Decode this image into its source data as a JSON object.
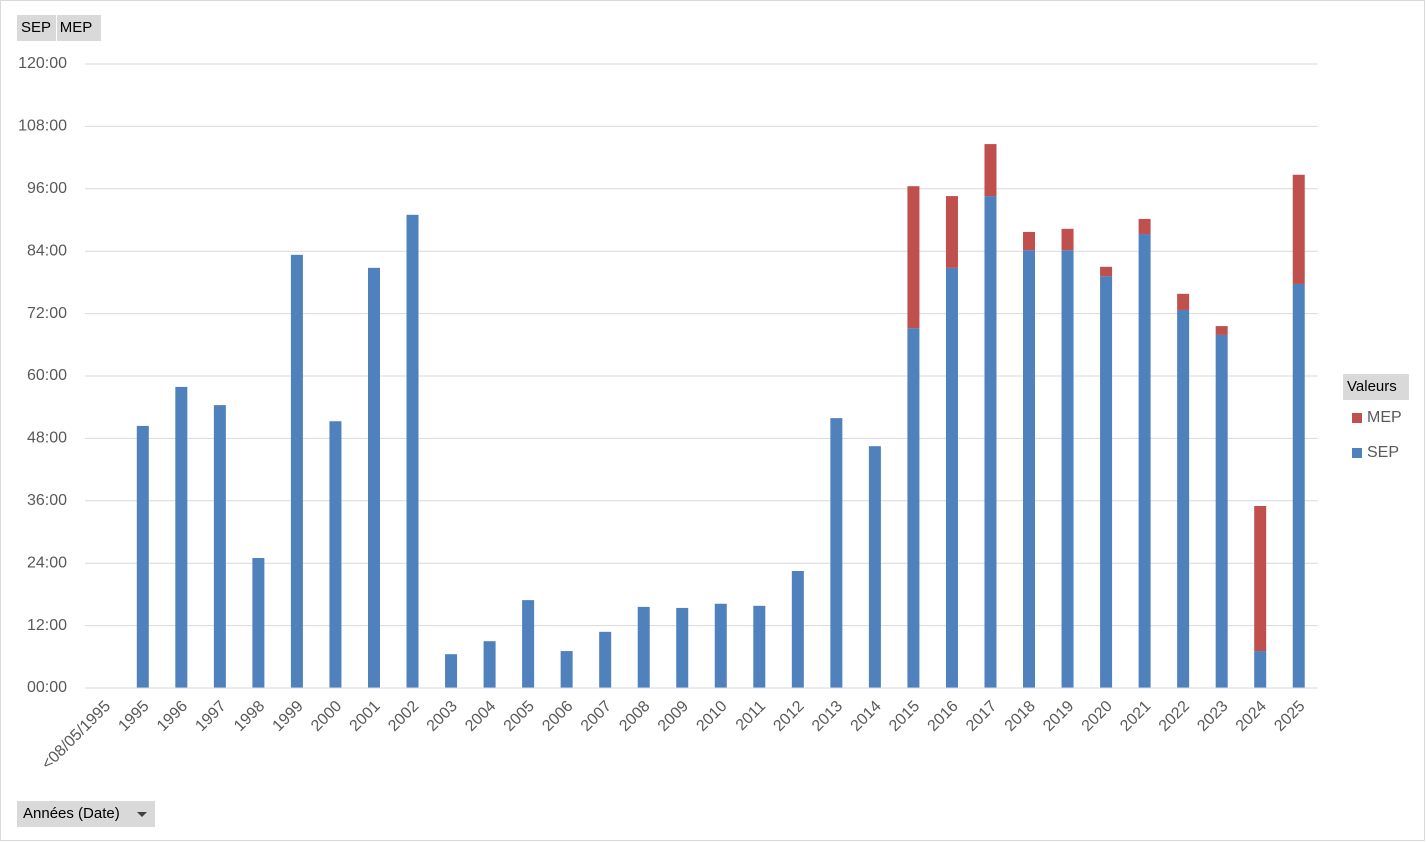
{
  "chart_data": {
    "type": "stacked_bar",
    "field_buttons": [
      "SEP",
      "MEP"
    ],
    "axis_field": "Années (Date)",
    "legend_title": "Valeurs",
    "categories": [
      "<08/05/1995",
      "1995",
      "1996",
      "1997",
      "1998",
      "1999",
      "2000",
      "2001",
      "2002",
      "2003",
      "2004",
      "2005",
      "2006",
      "2007",
      "2008",
      "2009",
      "2010",
      "2011",
      "2012",
      "2013",
      "2014",
      "2015",
      "2016",
      "2017",
      "2018",
      "2019",
      "2020",
      "2021",
      "2022",
      "2023",
      "2024",
      "2025"
    ],
    "series": [
      {
        "name": "SEP",
        "color": "#4f81bd",
        "values": [
          null,
          50.4,
          57.9,
          54.4,
          25.0,
          83.3,
          51.3,
          80.8,
          91.0,
          6.5,
          9.0,
          16.9,
          7.1,
          10.8,
          15.6,
          15.4,
          16.2,
          15.8,
          22.5,
          51.9,
          46.5,
          69.2,
          80.8,
          94.6,
          84.2,
          84.2,
          79.2,
          87.3,
          72.7,
          67.9,
          7.1,
          77.7
        ]
      },
      {
        "name": "MEP",
        "color": "#c0504d",
        "values": [
          null,
          null,
          null,
          null,
          null,
          null,
          null,
          null,
          null,
          null,
          null,
          null,
          null,
          null,
          null,
          null,
          null,
          null,
          null,
          null,
          null,
          27.3,
          13.8,
          10.0,
          3.5,
          4.1,
          1.8,
          2.9,
          3.1,
          1.7,
          27.9,
          21.0
        ]
      }
    ],
    "ylim": [
      0,
      120
    ],
    "yticks": [
      {
        "value": 0,
        "label": "00:00"
      },
      {
        "value": 12,
        "label": "12:00"
      },
      {
        "value": 24,
        "label": "24:00"
      },
      {
        "value": 36,
        "label": "36:00"
      },
      {
        "value": 48,
        "label": "48:00"
      },
      {
        "value": 60,
        "label": "60:00"
      },
      {
        "value": 72,
        "label": "72:00"
      },
      {
        "value": 84,
        "label": "84:00"
      },
      {
        "value": 96,
        "label": "96:00"
      },
      {
        "value": 108,
        "label": "108:00"
      },
      {
        "value": 120,
        "label": "120:00"
      }
    ],
    "grid": true,
    "legend": "right"
  }
}
